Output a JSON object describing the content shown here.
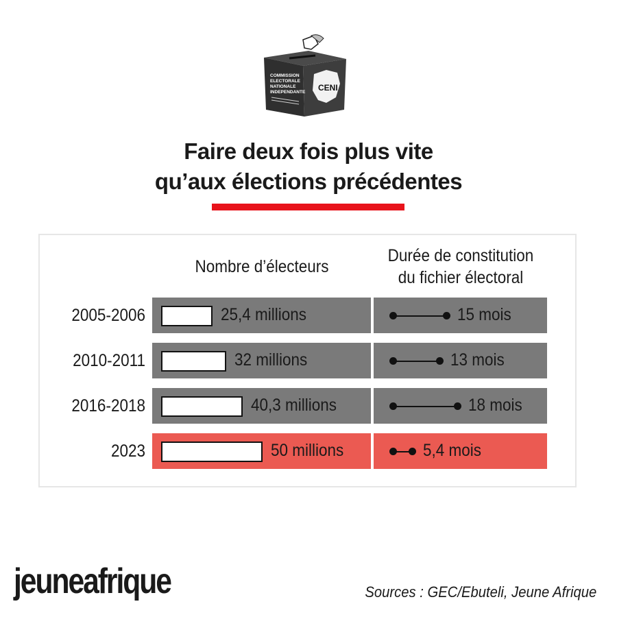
{
  "title": {
    "line1": "Faire deux fois plus vite",
    "line2": "qu’aux élections précédentes"
  },
  "ballot_box": {
    "front_text": [
      "COMMISSION",
      "ELECTORALE",
      "NATIONALE",
      "INDEPENDANTE"
    ],
    "side_text": "CENI"
  },
  "chart_data": {
    "type": "table",
    "columns": [
      "Nombre d’électeurs",
      "Durée de constitution du fichier électoral"
    ],
    "column2_lines": [
      "Durée de constitution",
      "du fichier électoral"
    ],
    "rows": [
      {
        "period": "2005-2006",
        "electeurs_label": "25,4 millions",
        "electeurs_millions": 25.4,
        "duree_label": "15 mois",
        "duree_mois": 15,
        "highlight": false
      },
      {
        "period": "2010-2011",
        "electeurs_label": "32 millions",
        "electeurs_millions": 32,
        "duree_label": "13 mois",
        "duree_mois": 13,
        "highlight": false
      },
      {
        "period": "2016-2018",
        "electeurs_label": "40,3 millions",
        "electeurs_millions": 40.3,
        "duree_label": "18 mois",
        "duree_mois": 18,
        "highlight": false
      },
      {
        "period": "2023",
        "electeurs_label": "50 millions",
        "electeurs_millions": 50,
        "duree_label": "5,4 mois",
        "duree_mois": 5.4,
        "highlight": true
      }
    ]
  },
  "colors": {
    "row_default": "#7a7a7a",
    "row_highlight": "#eb5a52",
    "title_rule": "#e8131b"
  },
  "footer": {
    "logo": "jeuneafrique",
    "sources": "Sources : GEC/Ebuteli, Jeune Afrique"
  }
}
